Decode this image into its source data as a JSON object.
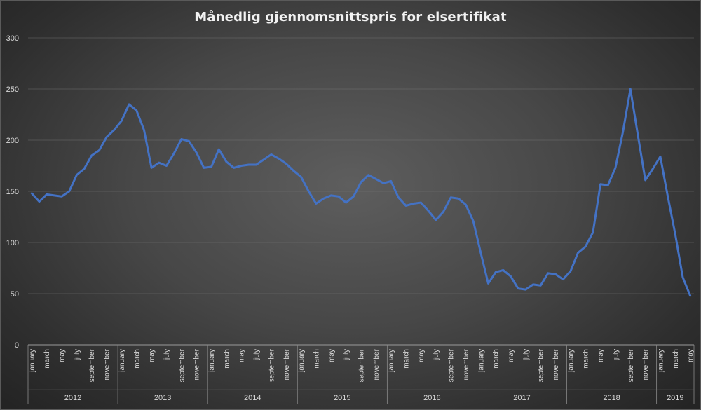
{
  "chart_data": {
    "type": "line",
    "title": "Månedlig gjennomsnittspris for elsertifikat",
    "xlabel": "",
    "ylabel": "",
    "ylim": [
      0,
      300
    ],
    "yticks": [
      0,
      50,
      100,
      150,
      200,
      250,
      300
    ],
    "grid": true,
    "legend": "none",
    "line_color": "#4472c4",
    "years": [
      {
        "label": "2012",
        "months": 12
      },
      {
        "label": "2013",
        "months": 12
      },
      {
        "label": "2014",
        "months": 12
      },
      {
        "label": "2015",
        "months": 12
      },
      {
        "label": "2016",
        "months": 12
      },
      {
        "label": "2017",
        "months": 12
      },
      {
        "label": "2018",
        "months": 12
      },
      {
        "label": "2019",
        "months": 5
      }
    ],
    "month_labels": [
      "january",
      "march",
      "may",
      "july",
      "september",
      "november"
    ],
    "month_labels_2019": [
      "january",
      "march",
      "may"
    ],
    "series": [
      {
        "values": [
          148,
          140,
          147,
          146,
          145,
          150,
          166,
          172,
          185,
          190,
          203,
          210,
          219,
          235,
          229,
          210,
          173,
          178,
          175,
          187,
          201,
          199,
          188,
          173,
          174,
          191,
          179,
          173,
          175,
          176,
          176,
          181,
          186,
          182,
          177,
          170,
          164,
          150,
          138,
          143,
          146,
          145,
          139,
          145,
          159,
          166,
          162,
          158,
          160,
          144,
          136,
          138,
          139,
          131,
          122,
          130,
          144,
          143,
          137,
          121,
          90,
          60,
          71,
          73,
          67,
          55,
          54,
          59,
          58,
          70,
          69,
          64,
          72,
          90,
          96,
          110,
          157,
          156,
          173,
          208,
          250,
          205,
          161,
          172,
          184,
          145,
          108,
          66,
          48
        ]
      }
    ]
  }
}
